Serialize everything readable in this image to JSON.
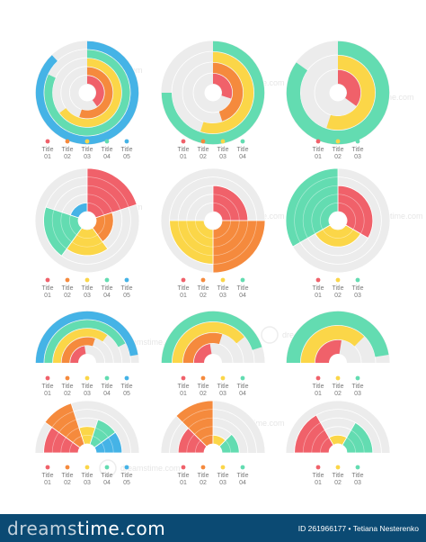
{
  "colors": {
    "red": "#f0616a",
    "orange": "#f58a3d",
    "yellow": "#fbd648",
    "teal": "#63dcb1",
    "blue": "#45b3e6",
    "track": "#ececec",
    "footer_bg": "#0b4a73"
  },
  "chart_data": [
    {
      "type": "radial-bar",
      "full_circle": true,
      "legend": [
        "Title 01",
        "Title 02",
        "Title 03",
        "Title 04",
        "Title 05"
      ],
      "legend_colors": [
        "red",
        "orange",
        "yellow",
        "teal",
        "blue"
      ],
      "values": [
        0.4,
        0.55,
        0.65,
        0.82,
        0.88
      ]
    },
    {
      "type": "radial-bar",
      "full_circle": true,
      "legend": [
        "Title 01",
        "Title 02",
        "Title 03",
        "Title 04"
      ],
      "legend_colors": [
        "red",
        "orange",
        "yellow",
        "teal"
      ],
      "values": [
        0.3,
        0.45,
        0.55,
        0.75
      ]
    },
    {
      "type": "radial-bar",
      "full_circle": true,
      "legend": [
        "Title 01",
        "Title 02",
        "Title 03"
      ],
      "legend_colors": [
        "red",
        "yellow",
        "teal"
      ],
      "values": [
        0.35,
        0.55,
        0.85
      ]
    },
    {
      "type": "polar-area",
      "full_circle": true,
      "legend": [
        "Title 01",
        "Title 02",
        "Title 03",
        "Title 04",
        "Title 05"
      ],
      "legend_colors": [
        "red",
        "orange",
        "yellow",
        "teal",
        "blue"
      ],
      "values": [
        5,
        2,
        3,
        4,
        1
      ]
    },
    {
      "type": "polar-area",
      "full_circle": true,
      "legend": [
        "Title 01",
        "Title 02",
        "Title 03",
        "Title 04"
      ],
      "legend_colors": [
        "red",
        "orange",
        "yellow",
        "teal"
      ],
      "values": [
        3,
        5,
        4,
        0
      ]
    },
    {
      "type": "polar-area",
      "full_circle": true,
      "legend": [
        "Title 01",
        "Title 02",
        "Title 03"
      ],
      "legend_colors": [
        "red",
        "yellow",
        "teal"
      ],
      "values": [
        3,
        2,
        5
      ]
    },
    {
      "type": "radial-bar",
      "full_circle": false,
      "legend": [
        "Title 01",
        "Title 02",
        "Title 03",
        "Title 04",
        "Title 05"
      ],
      "legend_colors": [
        "red",
        "orange",
        "yellow",
        "teal",
        "blue"
      ],
      "values": [
        0.45,
        0.6,
        0.7,
        0.85,
        0.95
      ]
    },
    {
      "type": "radial-bar",
      "full_circle": false,
      "legend": [
        "Title 01",
        "Title 02",
        "Title 03",
        "Title 04"
      ],
      "legend_colors": [
        "red",
        "orange",
        "yellow",
        "teal"
      ],
      "values": [
        0.45,
        0.6,
        0.78,
        0.9
      ]
    },
    {
      "type": "radial-bar",
      "full_circle": false,
      "legend": [
        "Title 01",
        "Title 02",
        "Title 03"
      ],
      "legend_colors": [
        "red",
        "yellow",
        "teal"
      ],
      "values": [
        0.55,
        0.75,
        0.95
      ]
    },
    {
      "type": "polar-area",
      "full_circle": false,
      "legend": [
        "Title 01",
        "Title 02",
        "Title 03",
        "Title 04",
        "Title 05"
      ],
      "legend_colors": [
        "red",
        "orange",
        "yellow",
        "teal",
        "blue"
      ],
      "values": [
        4,
        5,
        2,
        3,
        3
      ]
    },
    {
      "type": "polar-area",
      "full_circle": false,
      "legend": [
        "Title 01",
        "Title 02",
        "Title 03",
        "Title 04"
      ],
      "legend_colors": [
        "red",
        "orange",
        "yellow",
        "teal"
      ],
      "values": [
        3,
        5,
        1,
        2
      ]
    },
    {
      "type": "polar-area",
      "full_circle": false,
      "legend": [
        "Title 01",
        "Title 02",
        "Title 03"
      ],
      "legend_colors": [
        "red",
        "yellow",
        "teal"
      ],
      "values": [
        4,
        1,
        3
      ]
    }
  ],
  "watermark": {
    "text": "dreamstime.com"
  },
  "footer": {
    "brand_prefix": "dreams",
    "brand_suffix": "time.com",
    "id_text": "ID 261966177",
    "author": "Tetiana Nesterenko"
  }
}
